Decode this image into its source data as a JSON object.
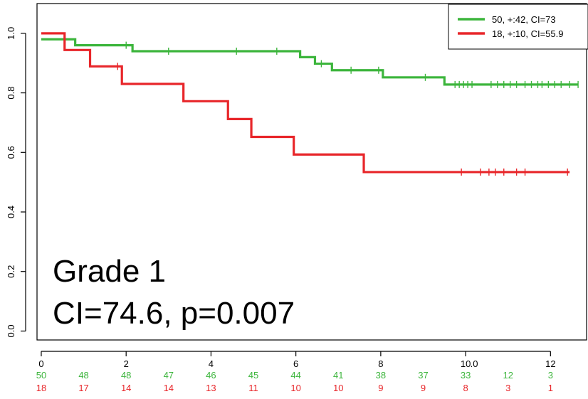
{
  "chart_data": {
    "type": "line",
    "title": "",
    "xlabel": "",
    "ylabel": "",
    "xlim": [
      -0.1,
      12.85
    ],
    "ylim": [
      -0.03,
      1.1
    ],
    "x_ticks": [
      {
        "value": 0,
        "label": "0"
      },
      {
        "value": 2,
        "label": "2"
      },
      {
        "value": 4,
        "label": "4"
      },
      {
        "value": 6,
        "label": "6"
      },
      {
        "value": 8,
        "label": "8"
      },
      {
        "value": 10,
        "label": "10"
      },
      {
        "value": 12,
        "label": "12"
      }
    ],
    "x_tick_extra": {
      "value": 10.2,
      "label": ".0"
    },
    "y_ticks": [
      {
        "value": 0.0,
        "label": "0.0"
      },
      {
        "value": 0.2,
        "label": "0.2"
      },
      {
        "value": 0.4,
        "label": "0.4"
      },
      {
        "value": 0.6,
        "label": "0.6"
      },
      {
        "value": 0.8,
        "label": "0.8"
      },
      {
        "value": 1.0,
        "label": "1.0"
      }
    ],
    "grid": false,
    "legend_position": "top-right",
    "series": [
      {
        "name": "50, +:42, CI=73",
        "color": "#3cb53c",
        "steps": [
          [
            0,
            0.98
          ],
          [
            0.8,
            0.96
          ],
          [
            2.15,
            0.94
          ],
          [
            6.1,
            0.92
          ],
          [
            6.45,
            0.898
          ],
          [
            6.85,
            0.876
          ],
          [
            8.05,
            0.852
          ],
          [
            9.5,
            0.828
          ],
          [
            12.65,
            0.828
          ]
        ],
        "censored": [
          2.0,
          3.0,
          4.6,
          5.55,
          6.6,
          7.3,
          7.95,
          9.05,
          9.75,
          9.85,
          9.95,
          10.05,
          10.15,
          10.6,
          10.75,
          10.9,
          11.05,
          11.2,
          11.4,
          11.55,
          11.7,
          11.8,
          11.95,
          12.1,
          12.25,
          12.45,
          12.65
        ],
        "risk_counts": [
          "50",
          "48",
          "48",
          "47",
          "46",
          "45",
          "44",
          "41",
          "38",
          "37",
          "33",
          "12",
          "3"
        ]
      },
      {
        "name": "18, +:10, CI=55.9",
        "color": "#e8262a",
        "steps": [
          [
            0,
            1.0
          ],
          [
            0.55,
            0.944
          ],
          [
            1.15,
            0.889
          ],
          [
            1.9,
            0.83
          ],
          [
            3.35,
            0.772
          ],
          [
            4.4,
            0.712
          ],
          [
            4.95,
            0.652
          ],
          [
            5.95,
            0.593
          ],
          [
            7.6,
            0.534
          ],
          [
            12.45,
            0.534
          ]
        ],
        "censored": [
          1.8,
          9.9,
          10.35,
          10.55,
          10.7,
          10.9,
          11.2,
          11.4,
          12.4
        ],
        "risk_counts": [
          "18",
          "17",
          "14",
          "14",
          "13",
          "11",
          "10",
          "10",
          "9",
          "9",
          "8",
          "3",
          "1"
        ]
      }
    ],
    "risk_times": [
      0,
      1,
      2,
      3,
      4,
      5,
      6,
      7,
      8,
      9,
      10,
      11,
      12
    ],
    "annotations": [
      "Grade 1",
      "CI=74.6, p=0.007"
    ]
  }
}
